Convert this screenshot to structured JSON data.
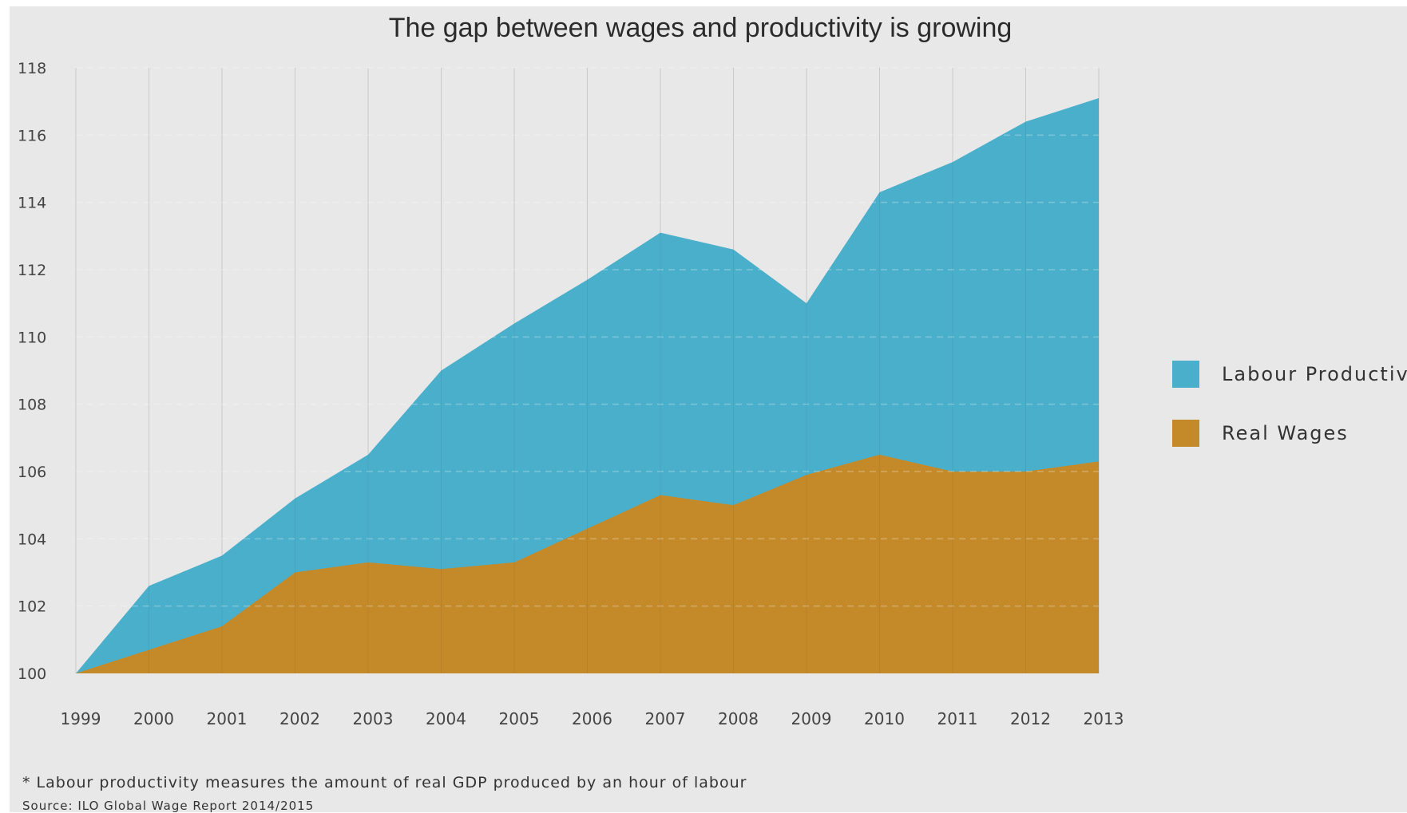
{
  "chart_data": {
    "type": "area",
    "title": "The gap between wages and productivity is growing",
    "categories": [
      "1999",
      "2000",
      "2001",
      "2002",
      "2003",
      "2004",
      "2005",
      "2006",
      "2007",
      "2008",
      "2009",
      "2010",
      "2011",
      "2012",
      "2013"
    ],
    "series": [
      {
        "name": "Labour Productivity",
        "color": "#4aafca",
        "values": [
          100,
          102.6,
          103.5,
          105.2,
          106.5,
          109.0,
          110.4,
          111.7,
          113.1,
          112.6,
          111.0,
          114.3,
          115.2,
          116.4,
          117.1
        ]
      },
      {
        "name": "Real Wages",
        "color": "#c48a2a",
        "values": [
          100,
          100.7,
          101.4,
          103.0,
          103.3,
          103.1,
          103.3,
          104.3,
          105.3,
          105.0,
          105.9,
          106.5,
          106.0,
          106.0,
          106.3
        ]
      }
    ],
    "ylim": [
      100,
      118
    ],
    "yticks": [
      100,
      102,
      104,
      106,
      108,
      110,
      112,
      114,
      116,
      118
    ],
    "grid": true,
    "legend_position": "right"
  },
  "footnote": "* Labour productivity measures the amount of real GDP produced by an hour of labour",
  "source": "Source: ILO Global Wage Report 2014/2015"
}
